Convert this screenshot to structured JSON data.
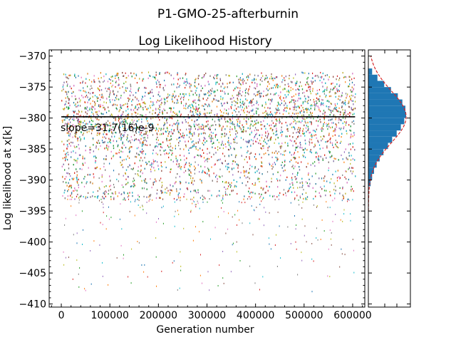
{
  "figure": {
    "suptitle": "P1-GMO-25-afterburnin"
  },
  "chart_data": [
    {
      "type": "scatter",
      "title": "Log Likelihood History",
      "xlabel": "Generation number",
      "ylabel": "Log likelihood at x[k]",
      "xlim": [
        -25000,
        625000
      ],
      "ylim": [
        -410.5,
        -369
      ],
      "xticks": [
        0,
        100000,
        200000,
        300000,
        400000,
        500000,
        600000
      ],
      "xtick_labels": [
        "0",
        "100000",
        "200000",
        "300000",
        "400000",
        "500000",
        "600000"
      ],
      "yticks": [
        -370,
        -375,
        -380,
        -385,
        -390,
        -395,
        -400,
        -405,
        -410
      ],
      "ytick_labels": [
        "−370",
        "−375",
        "−380",
        "−385",
        "−390",
        "−395",
        "−400",
        "−405",
        "−410"
      ],
      "grid": false,
      "legend": "none",
      "x_range": [
        0,
        605000
      ],
      "dense_band": {
        "y_top": -372.5,
        "y_bottom": -393,
        "mean": -379.8,
        "sd": 4.2
      },
      "sparse_tail_min": -408,
      "series_colors": [
        "#1f77b4",
        "#ff7f0e",
        "#2ca02c",
        "#d62728",
        "#9467bd",
        "#8c564b",
        "#e377c2",
        "#7f7f7f",
        "#bcbd22",
        "#17becf"
      ],
      "fit_line": {
        "y": -379.8,
        "x_start": 0,
        "x_end": 605000,
        "color": "#000000"
      },
      "annotation": "slope=31.7(16)e-9"
    },
    {
      "type": "histogram",
      "orientation": "horizontal",
      "ylim": [
        -410.5,
        -369
      ],
      "fill_color": "#1f77b4",
      "curve_color": "#d62728",
      "bin_edges": [
        -391,
        -390,
        -389,
        -388,
        -387,
        -386,
        -385,
        -384,
        -383,
        -382,
        -381,
        -380,
        -379,
        -378,
        -377,
        -376,
        -375,
        -374,
        -373,
        -372
      ],
      "counts": [
        0.06,
        0.1,
        0.15,
        0.22,
        0.3,
        0.4,
        0.52,
        0.63,
        0.75,
        0.86,
        0.95,
        1.0,
        0.98,
        0.9,
        0.78,
        0.6,
        0.42,
        0.24,
        0.1
      ],
      "gaussian": {
        "mean": -379.8,
        "sd": 4.2
      }
    }
  ]
}
